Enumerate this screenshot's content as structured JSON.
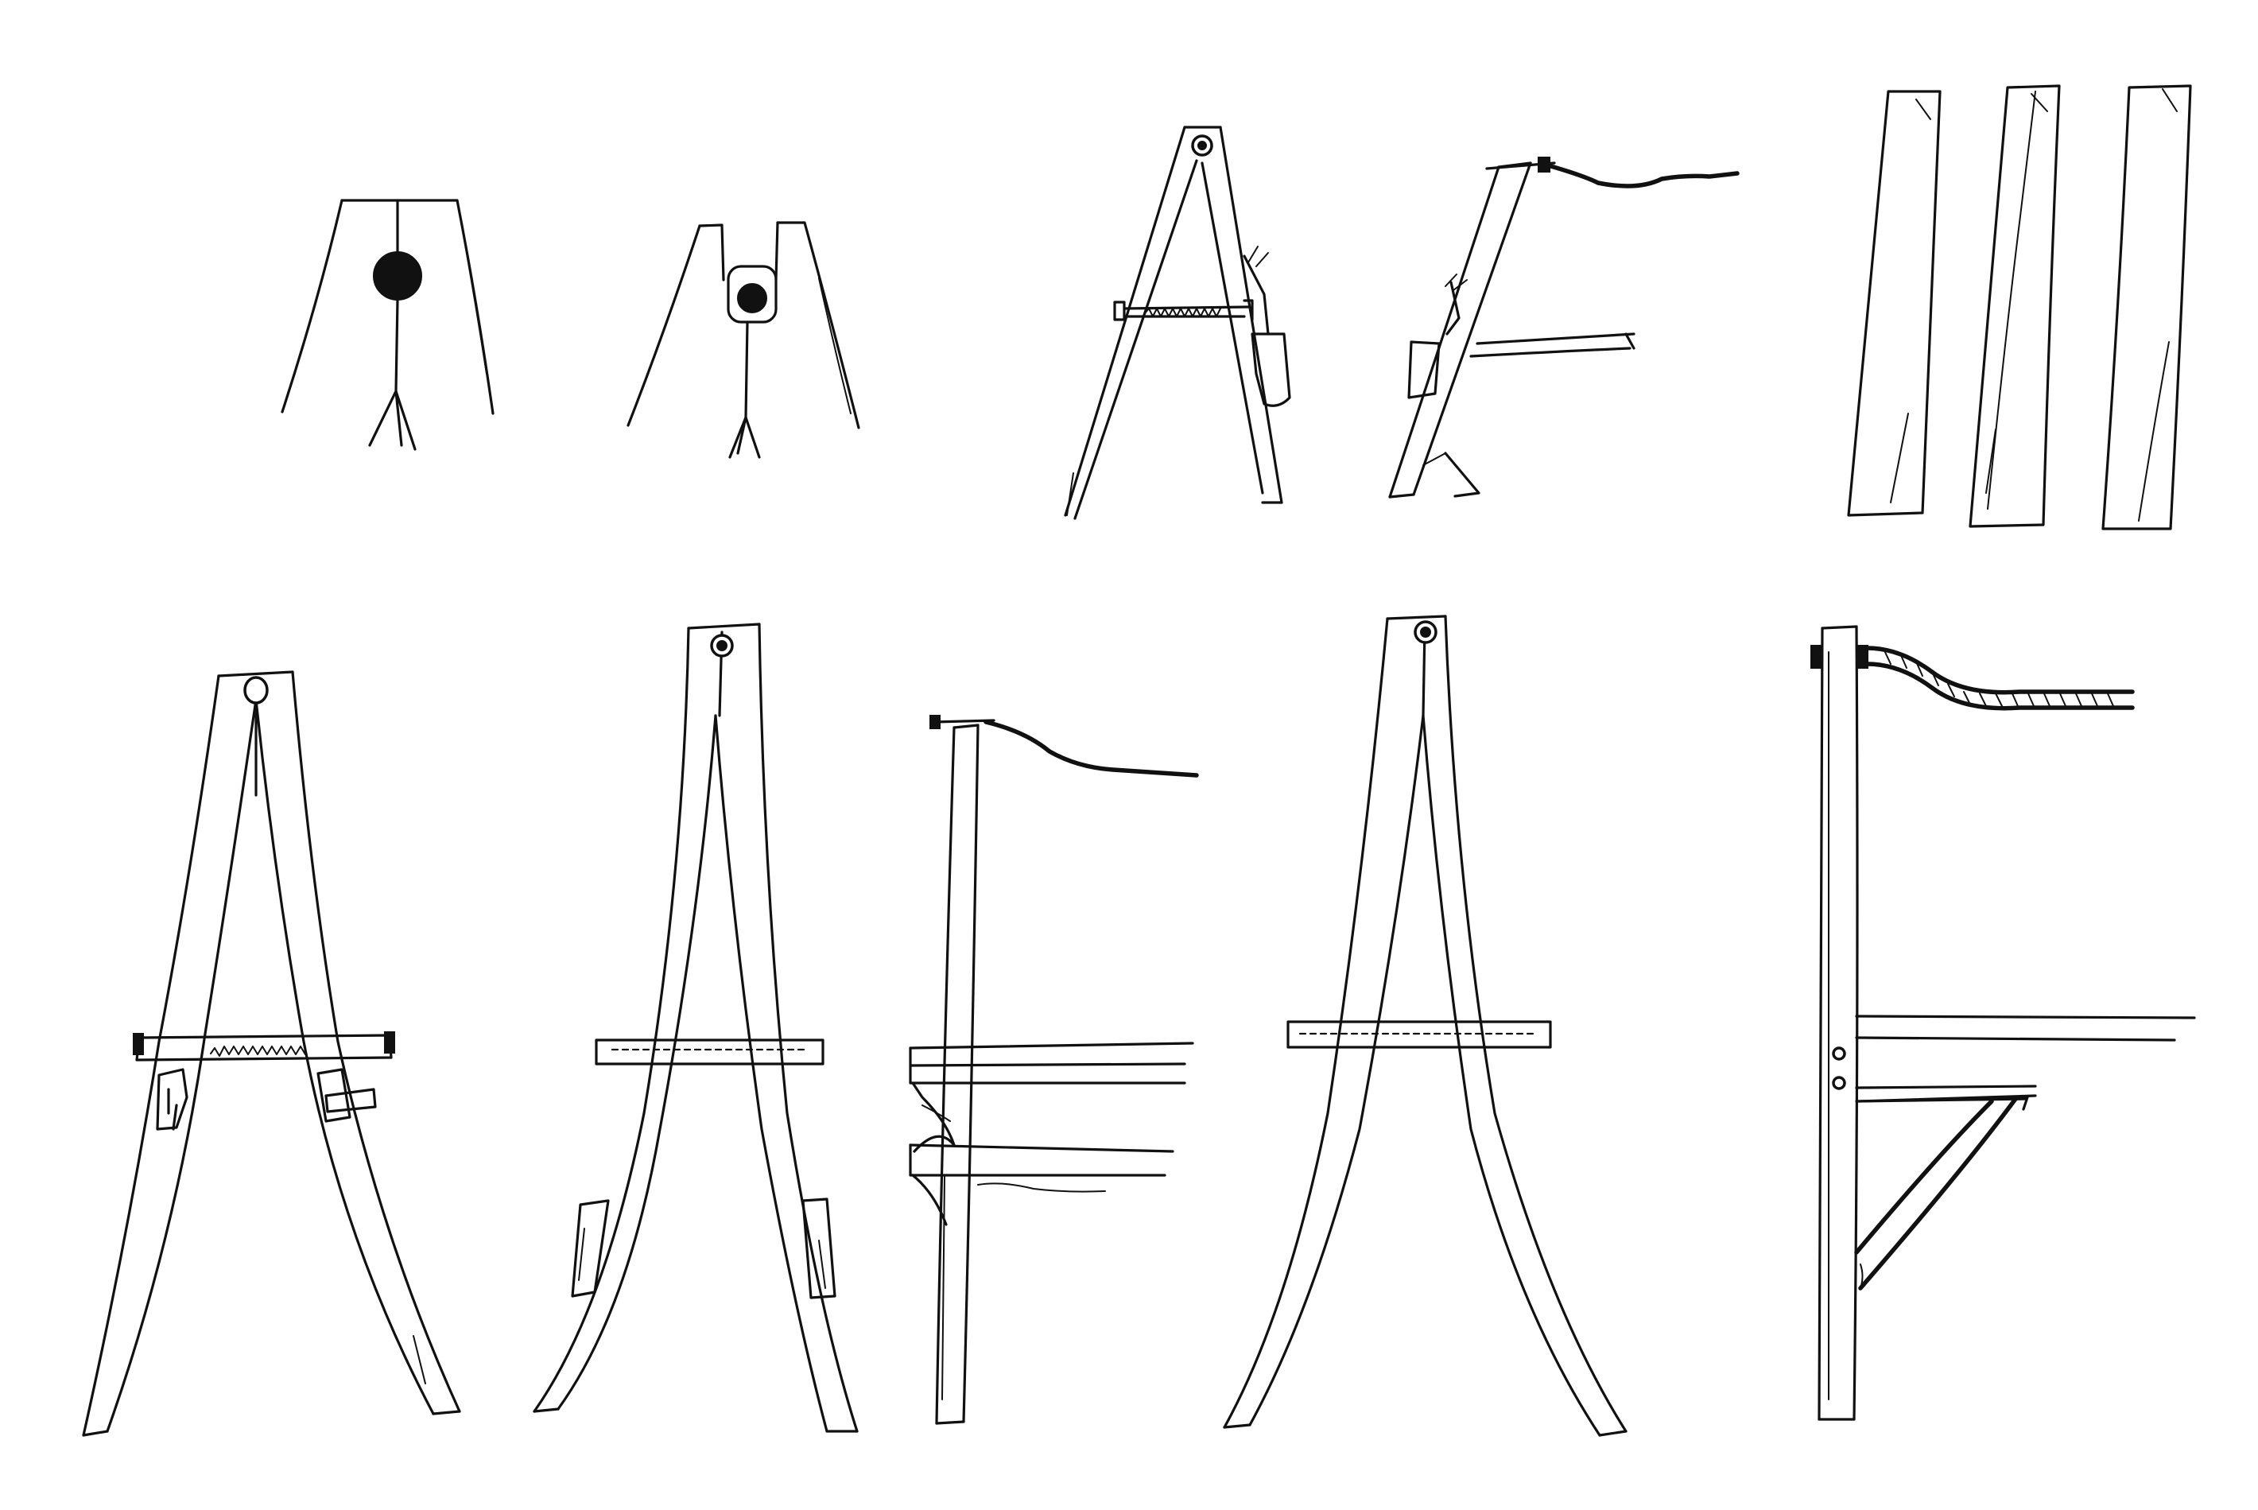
{
  "image": {
    "kind": "ink-sketch",
    "background_color": "#ffffff",
    "ink_color": "#111111",
    "text_labels": []
  },
  "rows": [
    {
      "name": "concept-row",
      "sketches": [
        "stick-figure-under-frame",
        "stick-figure-under-narrow-frame",
        "small-a-frame-with-bag",
        "small-side-post-with-bag",
        "three-timber-posts"
      ]
    },
    {
      "name": "detail-row",
      "sketches": [
        "a-frame-with-rope-crossbar",
        "a-frame-with-plates",
        "side-post-with-twin-beams",
        "a-frame-plain",
        "side-post-with-strut-and-rope"
      ]
    }
  ]
}
